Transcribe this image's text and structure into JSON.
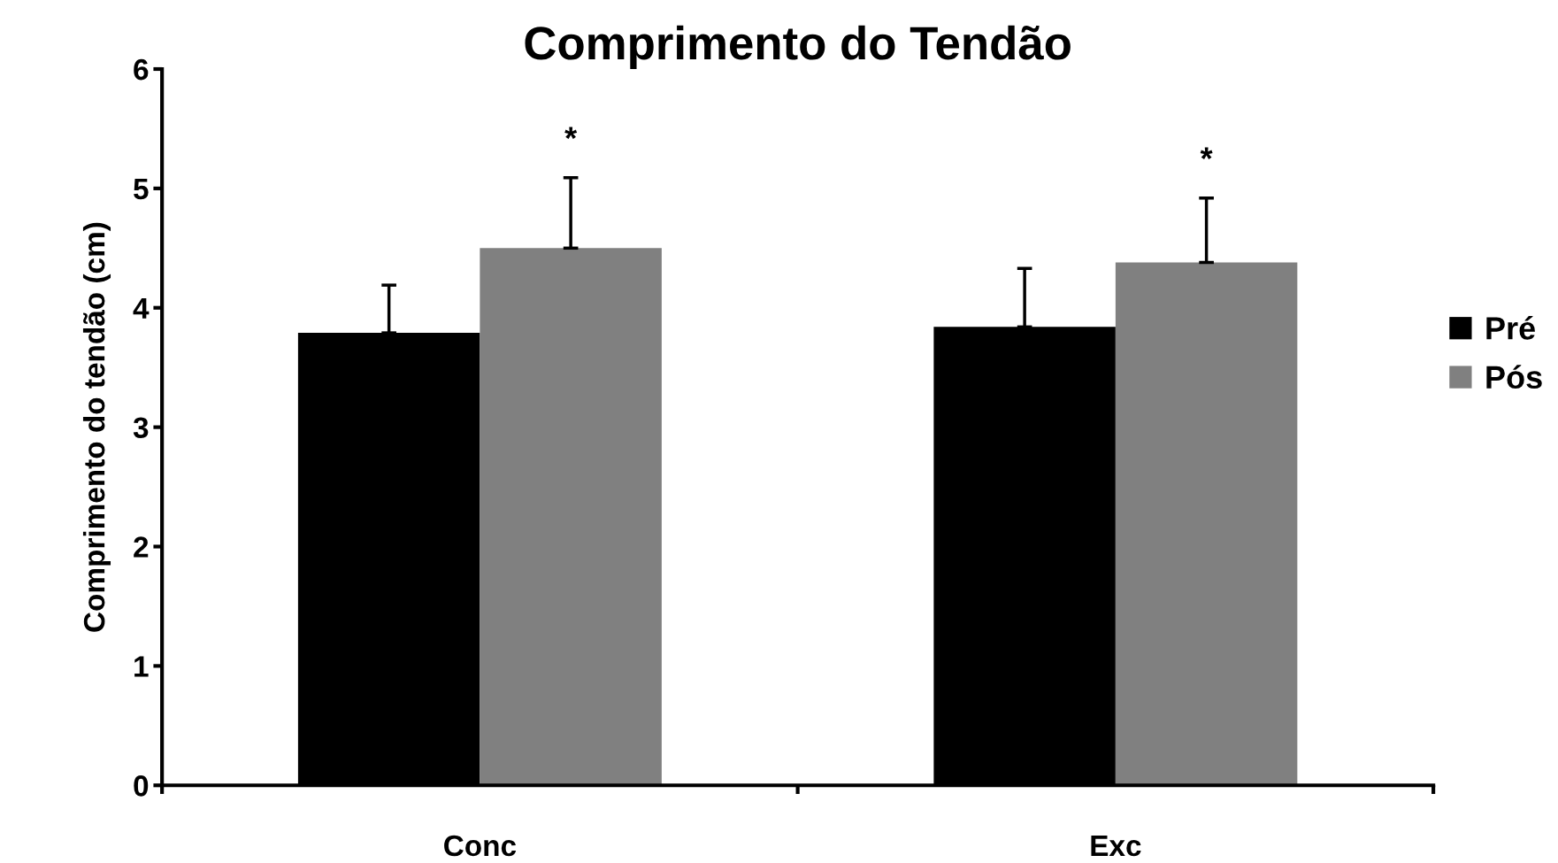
{
  "chart_data": {
    "type": "bar",
    "title": "Comprimento do Tendão",
    "ylabel": "Comprimento do tendão (cm)",
    "categories": [
      "Conc",
      "Exc"
    ],
    "series": [
      {
        "name": "Pré",
        "color": "#000000",
        "values": [
          3.79,
          3.84
        ],
        "errors": [
          [
            3.79,
            4.19
          ],
          [
            3.84,
            4.33
          ]
        ]
      },
      {
        "name": "Pós",
        "color": "#808080",
        "values": [
          4.5,
          4.38
        ],
        "errors": [
          [
            4.5,
            5.09
          ],
          [
            4.38,
            4.92
          ]
        ]
      }
    ],
    "annotations": [
      "*",
      "*"
    ],
    "ylim": [
      0,
      6
    ],
    "yticks": [
      0,
      1,
      2,
      3,
      4,
      5,
      6
    ],
    "grid": false,
    "legend": "right"
  }
}
